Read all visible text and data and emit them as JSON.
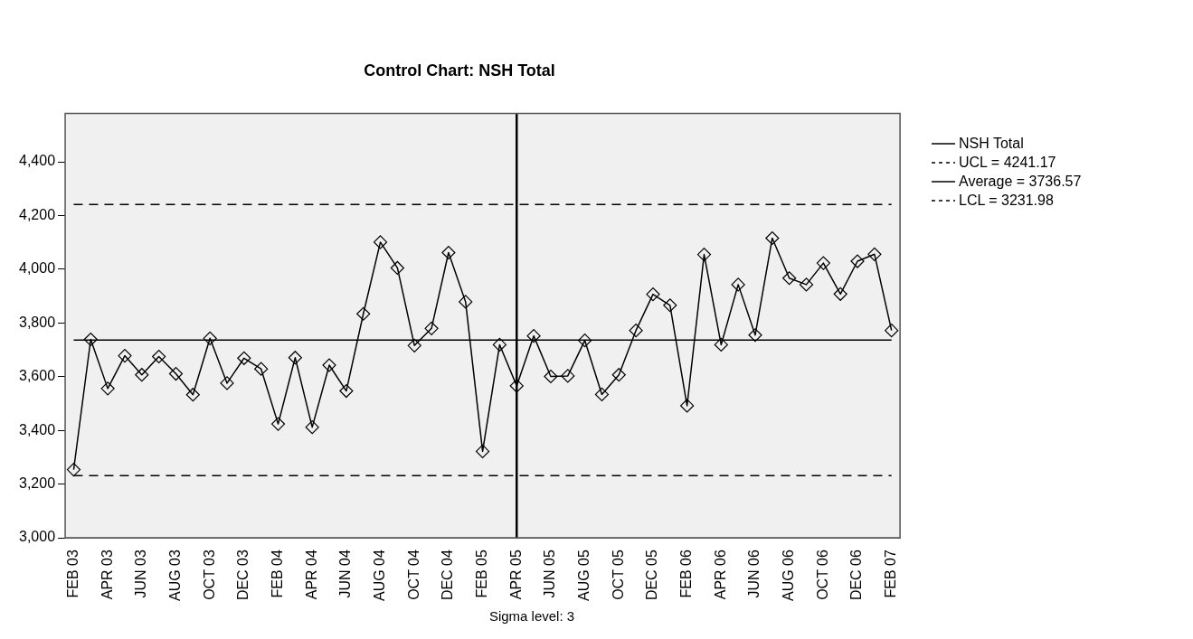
{
  "chart_data": {
    "type": "line",
    "title": "Control Chart: NSH Total",
    "categories": [
      "FEB 03",
      null,
      "APR 03",
      null,
      "JUN 03",
      null,
      "AUG 03",
      null,
      "OCT 03",
      null,
      "DEC 03",
      null,
      "FEB 04",
      null,
      "APR 04",
      null,
      "JUN 04",
      null,
      "AUG 04",
      null,
      "OCT 04",
      null,
      "DEC 04",
      null,
      "FEB 05",
      null,
      "APR 05",
      null,
      "JUN 05",
      null,
      "AUG 05",
      null,
      "OCT 05",
      null,
      "DEC 05",
      null,
      "FEB 06",
      null,
      "APR 06",
      null,
      "JUN 06",
      null,
      "AUG 06",
      null,
      "OCT 06",
      null,
      "DEC 06",
      null,
      "FEB 07"
    ],
    "series": [
      {
        "name": "NSH Total",
        "color": "#000000",
        "values": [
          3254,
          3739,
          3556,
          3678,
          3607,
          3675,
          3611,
          3533,
          3743,
          3576,
          3669,
          3629,
          3424,
          3671,
          3412,
          3643,
          3547,
          3834,
          4101,
          4005,
          3716,
          3780,
          4062,
          3879,
          3322,
          3719,
          3566,
          3752,
          3601,
          3603,
          3735,
          3534,
          3607,
          3772,
          3907,
          3866,
          3492,
          4055,
          3719,
          3943,
          3755,
          4116,
          3967,
          3943,
          4023,
          3908,
          4030,
          4056,
          3772
        ]
      }
    ],
    "ylim": [
      3000,
      4580
    ],
    "yticks": [
      {
        "value": 3000,
        "label": "3,000"
      },
      {
        "value": 3200,
        "label": "3,200"
      },
      {
        "value": 3400,
        "label": "3,400"
      },
      {
        "value": 3600,
        "label": "3,600"
      },
      {
        "value": 3800,
        "label": "3,800"
      },
      {
        "value": 4000,
        "label": "4,000"
      },
      {
        "value": 4200,
        "label": "4,200"
      },
      {
        "value": 4400,
        "label": "4,400"
      }
    ],
    "ref_lines": [
      {
        "axis": "y",
        "value": 4241.17,
        "label": "UCL = 4241.17",
        "line_style": "dashed",
        "color": "#000000"
      },
      {
        "axis": "y",
        "value": 3736.57,
        "label": "Average = 3736.57",
        "line_style": "solid",
        "color": "#000000"
      },
      {
        "axis": "y",
        "value": 3231.98,
        "label": "LCL = 3231.98",
        "line_style": "dashed",
        "color": "#000000"
      },
      {
        "axis": "x",
        "value": "APR 05",
        "line_style": "solid",
        "color": "#000000"
      }
    ],
    "annotations": [
      "Sigma level: 3"
    ],
    "marker": "diamond",
    "line_style": "solid",
    "legend": "right",
    "grid": false
  }
}
